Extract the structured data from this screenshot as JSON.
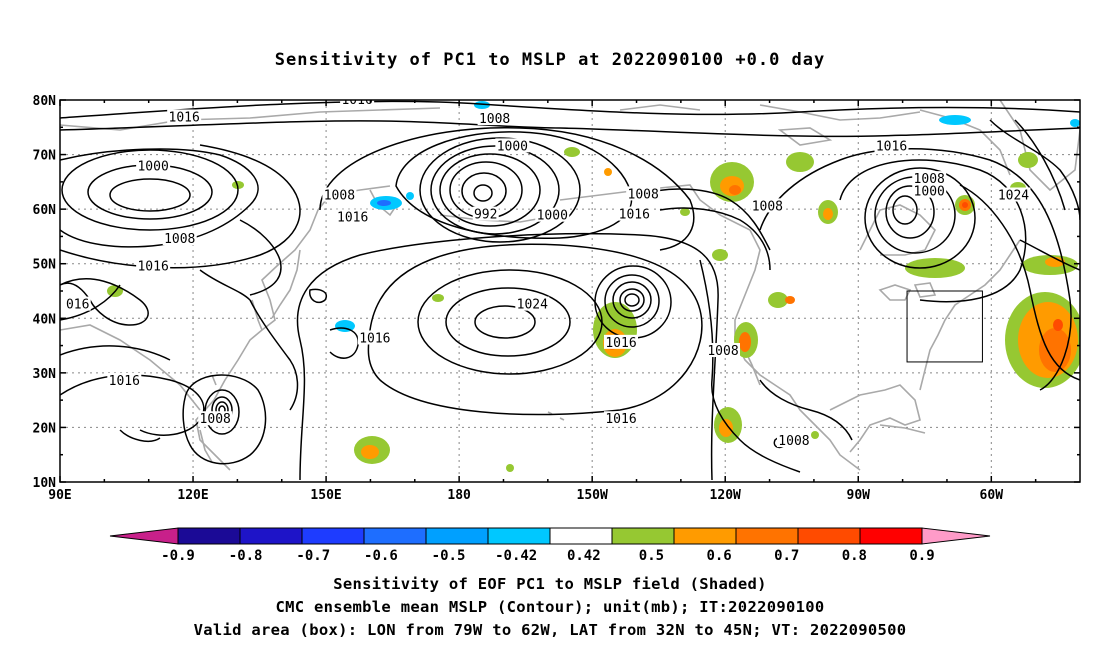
{
  "title": "Sensitivity of PC1 to MSLP at 2022090100 +0.0 day",
  "map": {
    "lat_labels": [
      "80N",
      "70N",
      "60N",
      "50N",
      "40N",
      "30N",
      "20N",
      "10N"
    ],
    "lon_labels": [
      "90E",
      "120E",
      "150E",
      "180",
      "150W",
      "120W",
      "90W",
      "60W"
    ],
    "contour_labels": [
      {
        "text": "1016",
        "lon": 157,
        "lat": 80
      },
      {
        "text": "1008",
        "lon": -172,
        "lat": 76.5
      },
      {
        "text": "1016",
        "lon": 118,
        "lat": 76.8
      },
      {
        "text": "1000",
        "lon": -168,
        "lat": 71.5
      },
      {
        "text": "1000",
        "lon": 111,
        "lat": 67.8
      },
      {
        "text": "1008",
        "lon": 153,
        "lat": 62.5
      },
      {
        "text": "992",
        "lon": -174,
        "lat": 59
      },
      {
        "text": "1000",
        "lon": -159,
        "lat": 58.8
      },
      {
        "text": "1016",
        "lon": -140.5,
        "lat": 59
      },
      {
        "text": "1008",
        "lon": -138.5,
        "lat": 62.7
      },
      {
        "text": "1016",
        "lon": 156,
        "lat": 58.5
      },
      {
        "text": "1008",
        "lon": 117,
        "lat": 54.5
      },
      {
        "text": "1016",
        "lon": 111,
        "lat": 49.5
      },
      {
        "text": "016",
        "lon": 94,
        "lat": 42.5
      },
      {
        "text": "1024",
        "lon": -163.5,
        "lat": 42.5
      },
      {
        "text": "1016",
        "lon": 161,
        "lat": 36.3
      },
      {
        "text": "1016",
        "lon": -143.5,
        "lat": 35.5
      },
      {
        "text": "1008",
        "lon": -120.5,
        "lat": 34
      },
      {
        "text": "1016",
        "lon": 104.5,
        "lat": 28.5
      },
      {
        "text": "1008",
        "lon": 125,
        "lat": 21.5
      },
      {
        "text": "1016",
        "lon": -143.5,
        "lat": 21.5
      },
      {
        "text": "1008",
        "lon": -104.5,
        "lat": 17.5
      },
      {
        "text": "1016",
        "lon": -82.5,
        "lat": 71.5
      },
      {
        "text": "1008",
        "lon": -110.5,
        "lat": 60.5
      },
      {
        "text": "1008",
        "lon": -74,
        "lat": 65.5
      },
      {
        "text": "1000",
        "lon": -74,
        "lat": 63.2
      },
      {
        "text": "1024",
        "lon": -55,
        "lat": 62.5
      }
    ],
    "valid_box": {
      "lon_min": -79,
      "lon_max": -62,
      "lat_min": 32,
      "lat_max": 45
    }
  },
  "colorbar": {
    "levels": [
      "-0.9",
      "-0.8",
      "-0.7",
      "-0.6",
      "-0.5",
      "-0.42",
      "0.42",
      "0.5",
      "0.6",
      "0.7",
      "0.8",
      "0.9"
    ],
    "colors": [
      "#c8208a",
      "#1b0a96",
      "#1e14c8",
      "#1e3cff",
      "#1e6eff",
      "#00a0ff",
      "#00c8ff",
      "#ffffff",
      "#96c832",
      "#ff9b00",
      "#ff7300",
      "#ff4b00",
      "#ff0000",
      "#ff9bc8"
    ]
  },
  "captions": [
    "Sensitivity of EOF PC1 to MSLP field (Shaded)",
    "CMC ensemble mean MSLP (Contour); unit(mb); IT:2022090100",
    "Valid area (box): LON from 79W to 62W, LAT from 32N to 45N; VT: 2022090500"
  ]
}
